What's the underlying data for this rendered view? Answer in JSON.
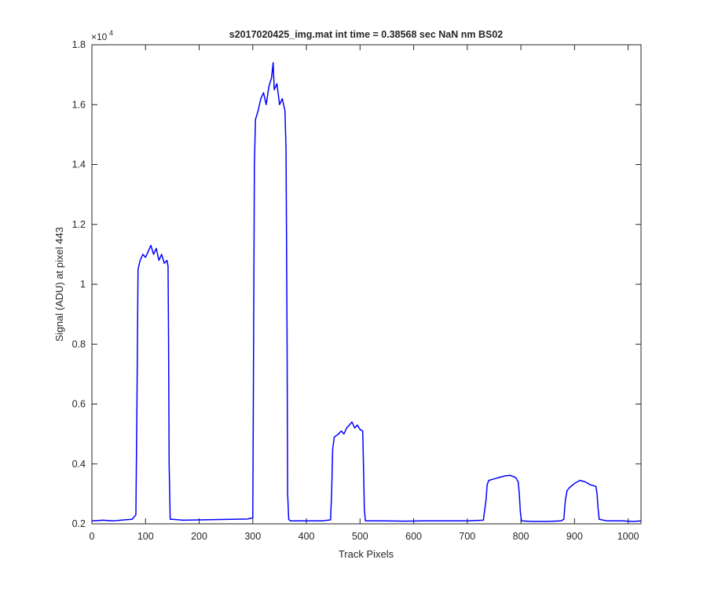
{
  "chart_data": {
    "type": "line",
    "title": "s2017020425_img.mat int time = 0.38568 sec  NaN nm BS02",
    "xlabel": "Track Pixels",
    "ylabel": "Signal (ADU) at pixel 443",
    "exponent_label": "×10",
    "exponent_power": "4",
    "xlim": [
      0,
      1024
    ],
    "ylim": [
      0.2,
      1.8
    ],
    "xticks": [
      0,
      100,
      200,
      300,
      400,
      500,
      600,
      700,
      800,
      900,
      1000
    ],
    "yticks": [
      0.2,
      0.4,
      0.6,
      0.8,
      1,
      1.2,
      1.4,
      1.6,
      1.8
    ],
    "xtick_labels": [
      "0",
      "100",
      "200",
      "300",
      "400",
      "500",
      "600",
      "700",
      "800",
      "900",
      "1000"
    ],
    "ytick_labels": [
      "0.2",
      "0.4",
      "0.6",
      "0.8",
      "1",
      "1.2",
      "1.4",
      "1.6",
      "1.8"
    ],
    "line_color": "#0000ff",
    "grid": false,
    "series": [
      {
        "x": [
          0,
          20,
          40,
          60,
          75,
          82,
          84,
          86,
          90,
          95,
          100,
          105,
          110,
          115,
          120,
          125,
          130,
          135,
          140,
          142,
          143,
          144,
          146,
          150,
          170,
          200,
          230,
          260,
          290,
          300,
          301,
          303,
          305,
          310,
          315,
          320,
          325,
          330,
          335,
          338,
          340,
          345,
          350,
          355,
          360,
          362,
          364,
          365,
          367,
          370,
          400,
          430,
          445,
          447,
          449,
          452,
          460,
          465,
          470,
          475,
          480,
          485,
          490,
          495,
          500,
          505,
          507,
          508,
          510,
          540,
          580,
          620,
          660,
          700,
          730,
          735,
          737,
          740,
          750,
          760,
          770,
          780,
          790,
          795,
          797,
          799,
          801,
          820,
          850,
          875,
          880,
          883,
          886,
          890,
          900,
          910,
          920,
          930,
          940,
          942,
          944,
          946,
          960,
          990,
          1010,
          1024
        ],
        "y": [
          0.21,
          0.212,
          0.21,
          0.213,
          0.215,
          0.23,
          0.6,
          1.05,
          1.08,
          1.1,
          1.09,
          1.11,
          1.13,
          1.1,
          1.12,
          1.08,
          1.1,
          1.07,
          1.08,
          1.06,
          0.8,
          0.4,
          0.215,
          0.215,
          0.212,
          0.213,
          0.214,
          0.215,
          0.216,
          0.22,
          0.6,
          1.4,
          1.55,
          1.58,
          1.62,
          1.64,
          1.6,
          1.66,
          1.69,
          1.74,
          1.65,
          1.67,
          1.6,
          1.62,
          1.58,
          1.45,
          0.8,
          0.3,
          0.215,
          0.21,
          0.21,
          0.21,
          0.213,
          0.3,
          0.45,
          0.49,
          0.5,
          0.51,
          0.5,
          0.52,
          0.53,
          0.54,
          0.52,
          0.53,
          0.515,
          0.51,
          0.35,
          0.25,
          0.21,
          0.21,
          0.209,
          0.21,
          0.21,
          0.21,
          0.212,
          0.28,
          0.33,
          0.345,
          0.35,
          0.355,
          0.36,
          0.362,
          0.355,
          0.34,
          0.3,
          0.24,
          0.21,
          0.208,
          0.208,
          0.21,
          0.215,
          0.28,
          0.31,
          0.32,
          0.335,
          0.345,
          0.34,
          0.33,
          0.325,
          0.3,
          0.25,
          0.215,
          0.21,
          0.21,
          0.208,
          0.21
        ]
      }
    ]
  }
}
